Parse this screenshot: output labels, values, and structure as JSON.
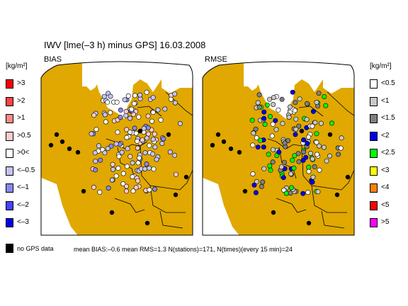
{
  "title": "IWV [lme(–3 h) minus GPS] 16.03.2008",
  "panels": {
    "left_label": "BIAS",
    "right_label": "RMSE"
  },
  "unit_label": "[kg/m²]",
  "bias_legend": [
    {
      "label": ">3",
      "color": "#ff0000"
    },
    {
      "label": ">2",
      "color": "#ff4444"
    },
    {
      "label": ">1",
      "color": "#ff8888"
    },
    {
      "label": ">0.5",
      "color": "#ffcccc"
    },
    {
      "label": ">0<",
      "color": "#ffffff"
    },
    {
      "label": "<–0.5",
      "color": "#c4c4f4"
    },
    {
      "label": "<–1",
      "color": "#8888ee"
    },
    {
      "label": "<–2",
      "color": "#4444ff"
    },
    {
      "label": "<–3",
      "color": "#0000ee"
    }
  ],
  "rmse_legend": [
    {
      "label": "<0.5",
      "color": "#ffffff"
    },
    {
      "label": "<1",
      "color": "#c8c8c8"
    },
    {
      "label": "<1.5",
      "color": "#808080"
    },
    {
      "label": "<2",
      "color": "#0000ee"
    },
    {
      "label": "<2.5",
      "color": "#00ff00"
    },
    {
      "label": "<3",
      "color": "#ffff00"
    },
    {
      "label": "<4",
      "color": "#ff8000"
    },
    {
      "label": "<5",
      "color": "#ff0000"
    },
    {
      "label": ">5",
      "color": "#ff00ff"
    }
  ],
  "no_data": {
    "label": "no GPS data",
    "color": "#000000"
  },
  "footer": "mean BIAS:–0.6  mean RMS=1.3  N(stations)=171, N(times)(every 15 min)=24",
  "colors": {
    "land": "#e0a800",
    "water": "#ffffff",
    "border": "#000000"
  }
}
